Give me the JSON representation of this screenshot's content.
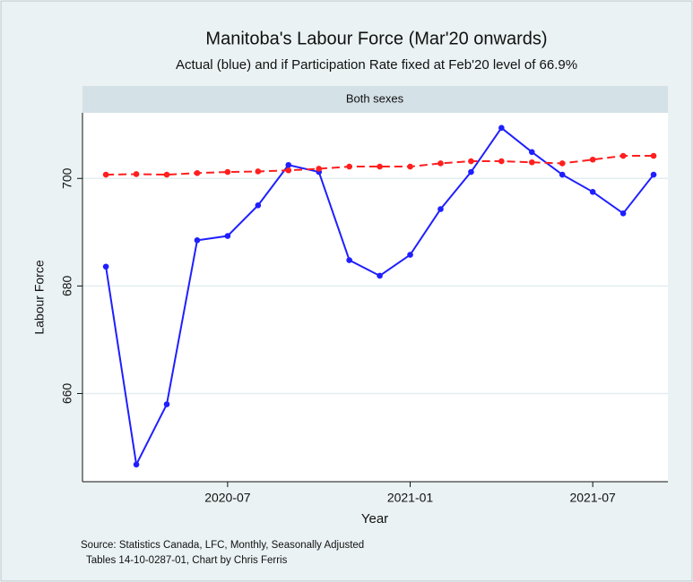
{
  "chart_data": {
    "type": "line",
    "title": "Manitoba's Labour Force (Mar'20 onwards)",
    "subtitle": "Actual (blue) and if Participation Rate fixed at Feb'20 level of 66.9%",
    "panel_label": "Both sexes",
    "xlabel": "Year",
    "ylabel": "Labour Force",
    "note": [
      "Source: Statistics Canada, LFC, Monthly, Seasonally Adjusted",
      "Tables 14-10-0287-01, Chart by Chris Ferris"
    ],
    "x": [
      "2020-03",
      "2020-04",
      "2020-05",
      "2020-06",
      "2020-07",
      "2020-08",
      "2020-09",
      "2020-10",
      "2020-11",
      "2020-12",
      "2021-01",
      "2021-02",
      "2021-03",
      "2021-04",
      "2021-05",
      "2021-06",
      "2021-07",
      "2021-08",
      "2021-09"
    ],
    "xticks": [
      "2020-07",
      "2021-01",
      "2021-07"
    ],
    "ylim": [
      643.6,
      712.2
    ],
    "yticks": [
      660,
      680,
      700
    ],
    "grid": true,
    "series": [
      {
        "color": "#1f1fff",
        "linestyle": "solid",
        "values": [
          683.6,
          646.8,
          658.0,
          688.5,
          689.3,
          695.0,
          702.5,
          701.2,
          684.8,
          681.9,
          685.8,
          694.3,
          701.2,
          709.4,
          704.9,
          700.7,
          697.5,
          693.5,
          700.7
        ]
      },
      {
        "color": "#ff1f1f",
        "linestyle": "dashed",
        "values": [
          700.7,
          700.8,
          700.7,
          701.0,
          701.2,
          701.3,
          701.5,
          701.8,
          702.2,
          702.2,
          702.2,
          702.8,
          703.2,
          703.2,
          703.0,
          702.8,
          703.5,
          704.2,
          704.2
        ]
      }
    ]
  }
}
